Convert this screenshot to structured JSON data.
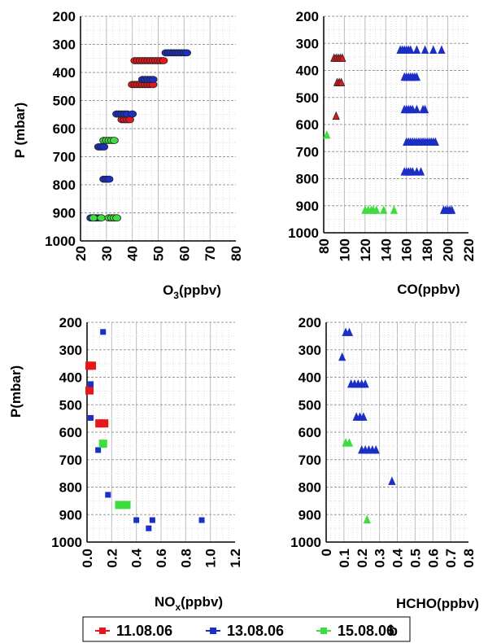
{
  "colors": {
    "s1": "#e8161b",
    "s2": "#1c2fc4",
    "s3": "#3fdc3f"
  },
  "legend": [
    {
      "label": "11.08.06",
      "color": "#e8161b"
    },
    {
      "label": "13.08.06",
      "color": "#1c2fc4"
    },
    {
      "label": "15.08.06",
      "color": "#3fdc3f"
    }
  ],
  "legend_suffix": "b",
  "chart_data": [
    {
      "type": "scatter",
      "id": "o3",
      "marker": "circle",
      "xlabel_main": "O",
      "xlabel_sub": "3",
      "xlabel_tail": "(ppbv)",
      "ylabel": "P (mbar)",
      "xlim": [
        20,
        80
      ],
      "ylim": [
        200,
        1000
      ],
      "xticks": [
        20,
        30,
        40,
        50,
        60,
        70,
        80
      ],
      "yticks": [
        200,
        300,
        400,
        500,
        600,
        700,
        800,
        900,
        1000
      ],
      "grid": true,
      "series": [
        {
          "name": "11.08.06",
          "points": [
            [
              41,
              358
            ],
            [
              42,
              358
            ],
            [
              43,
              358
            ],
            [
              44,
              358
            ],
            [
              45,
              358
            ],
            [
              46,
              358
            ],
            [
              47,
              358
            ],
            [
              48,
              358
            ],
            [
              49,
              358
            ],
            [
              50,
              358
            ],
            [
              51,
              358
            ],
            [
              52,
              358
            ],
            [
              40,
              443
            ],
            [
              41,
              443
            ],
            [
              42,
              443
            ],
            [
              43,
              443
            ],
            [
              44,
              443
            ],
            [
              45,
              443
            ],
            [
              46,
              443
            ],
            [
              47,
              443
            ],
            [
              48,
              443
            ],
            [
              36,
              568
            ],
            [
              37,
              568
            ],
            [
              38,
              568
            ],
            [
              39,
              568
            ]
          ]
        },
        {
          "name": "13.08.06",
          "points": [
            [
              53,
              330
            ],
            [
              54,
              330
            ],
            [
              55,
              330
            ],
            [
              56,
              330
            ],
            [
              57,
              330
            ],
            [
              58,
              330
            ],
            [
              59,
              330
            ],
            [
              60,
              330
            ],
            [
              61,
              330
            ],
            [
              44,
              425
            ],
            [
              45,
              425
            ],
            [
              46,
              425
            ],
            [
              47,
              425
            ],
            [
              48,
              425
            ],
            [
              34,
              548
            ],
            [
              35,
              548
            ],
            [
              36,
              548
            ],
            [
              37,
              548
            ],
            [
              38,
              548
            ],
            [
              40,
              548
            ],
            [
              27,
              665
            ],
            [
              28,
              665
            ],
            [
              29,
              665
            ],
            [
              29,
              780
            ],
            [
              30,
              780
            ],
            [
              31,
              780
            ],
            [
              24,
              918
            ],
            [
              25,
              918
            ],
            [
              26,
              918
            ],
            [
              27,
              918
            ]
          ]
        },
        {
          "name": "15.08.06",
          "points": [
            [
              29,
              642
            ],
            [
              30,
              642
            ],
            [
              31,
              642
            ],
            [
              32,
              642
            ],
            [
              33,
              642
            ],
            [
              25,
              918
            ],
            [
              28,
              918
            ],
            [
              31,
              918
            ],
            [
              32,
              918
            ],
            [
              33,
              918
            ],
            [
              34,
              918
            ]
          ]
        }
      ]
    },
    {
      "type": "scatter",
      "id": "co",
      "marker": "triangle",
      "xlabel_main": "CO(ppbv)",
      "ylabel": "",
      "xlim": [
        80,
        220
      ],
      "ylim": [
        200,
        1000
      ],
      "xticks": [
        80,
        100,
        120,
        140,
        160,
        180,
        200,
        220
      ],
      "yticks": [
        200,
        300,
        400,
        500,
        600,
        700,
        800,
        900,
        1000
      ],
      "grid": true,
      "series": [
        {
          "name": "11.08.06",
          "points": [
            [
              90,
              358
            ],
            [
              92,
              358
            ],
            [
              94,
              358
            ],
            [
              96,
              358
            ],
            [
              98,
              358
            ],
            [
              93,
              448
            ],
            [
              95,
              448
            ],
            [
              97,
              448
            ],
            [
              92,
              572
            ]
          ]
        },
        {
          "name": "13.08.06",
          "points": [
            [
              154,
              328
            ],
            [
              156,
              328
            ],
            [
              158,
              328
            ],
            [
              160,
              328
            ],
            [
              162,
              328
            ],
            [
              164,
              328
            ],
            [
              170,
              328
            ],
            [
              178,
              328
            ],
            [
              186,
              328
            ],
            [
              194,
              328
            ],
            [
              158,
              428
            ],
            [
              160,
              428
            ],
            [
              162,
              428
            ],
            [
              164,
              428
            ],
            [
              166,
              428
            ],
            [
              168,
              428
            ],
            [
              170,
              428
            ],
            [
              158,
              548
            ],
            [
              160,
              548
            ],
            [
              162,
              548
            ],
            [
              164,
              548
            ],
            [
              166,
              548
            ],
            [
              170,
              548
            ],
            [
              176,
              548
            ],
            [
              178,
              548
            ],
            [
              160,
              668
            ],
            [
              162,
              668
            ],
            [
              164,
              668
            ],
            [
              166,
              668
            ],
            [
              168,
              668
            ],
            [
              170,
              668
            ],
            [
              172,
              668
            ],
            [
              174,
              668
            ],
            [
              176,
              668
            ],
            [
              178,
              668
            ],
            [
              180,
              668
            ],
            [
              182,
              668
            ],
            [
              184,
              668
            ],
            [
              186,
              668
            ],
            [
              188,
              668
            ],
            [
              158,
              778
            ],
            [
              160,
              778
            ],
            [
              162,
              778
            ],
            [
              164,
              778
            ],
            [
              166,
              778
            ],
            [
              170,
              778
            ],
            [
              174,
              778
            ],
            [
              196,
              920
            ],
            [
              198,
              920
            ],
            [
              200,
              920
            ],
            [
              202,
              920
            ],
            [
              204,
              920
            ]
          ]
        },
        {
          "name": "15.08.06",
          "points": [
            [
              83,
              642
            ],
            [
              120,
              920
            ],
            [
              123,
              920
            ],
            [
              126,
              920
            ],
            [
              128,
              920
            ],
            [
              131,
              920
            ],
            [
              138,
              920
            ],
            [
              148,
              920
            ]
          ]
        }
      ]
    },
    {
      "type": "scatter",
      "id": "nox",
      "marker": "square",
      "xlabel_main": "NO",
      "xlabel_sub": "x",
      "xlabel_tail": "(ppbv)",
      "ylabel": "P(mbar)",
      "xlim": [
        0.0,
        1.2
      ],
      "ylim": [
        200,
        1000
      ],
      "xticks": [
        0.0,
        0.2,
        0.4,
        0.6,
        0.8,
        1.0,
        1.2
      ],
      "xtick_labels": [
        "0.0",
        "0.2",
        "0.4",
        "0.6",
        "0.8",
        "1.0",
        "1.2"
      ],
      "yticks": [
        200,
        300,
        400,
        500,
        600,
        700,
        800,
        900,
        1000
      ],
      "grid": true,
      "series": [
        {
          "name": "11.08.06",
          "points": [
            [
              0.02,
              358
            ],
            [
              0.04,
              358
            ],
            [
              0.02,
              448
            ],
            [
              0.1,
              568
            ],
            [
              0.14,
              568
            ]
          ]
        },
        {
          "name": "13.08.06",
          "points": [
            [
              0.13,
              235
            ],
            [
              0.03,
              425
            ],
            [
              0.03,
              548
            ],
            [
              0.09,
              665
            ],
            [
              0.17,
              828
            ],
            [
              0.4,
              920
            ],
            [
              0.53,
              920
            ],
            [
              0.93,
              920
            ],
            [
              0.5,
              950
            ]
          ]
        },
        {
          "name": "15.08.06",
          "points": [
            [
              0.13,
              642
            ],
            [
              0.26,
              865
            ],
            [
              0.32,
              865
            ]
          ]
        }
      ]
    },
    {
      "type": "scatter",
      "id": "hcho",
      "marker": "triangle",
      "xlabel_main": "HCHO(ppbv)",
      "ylabel": "",
      "xlim": [
        0,
        0.8
      ],
      "ylim": [
        200,
        1000
      ],
      "xticks": [
        0,
        0.1,
        0.2,
        0.3,
        0.4,
        0.5,
        0.6,
        0.7,
        0.8
      ],
      "xtick_labels": [
        "0",
        "0.1",
        "0.2",
        "0.3",
        "0.4",
        "0.5",
        "0.6",
        "0.7",
        "0.8"
      ],
      "yticks": [
        200,
        300,
        400,
        500,
        600,
        700,
        800,
        900,
        1000
      ],
      "grid": true,
      "series": [
        {
          "name": "11.08.06",
          "points": []
        },
        {
          "name": "13.08.06",
          "points": [
            [
              0.11,
              240
            ],
            [
              0.13,
              240
            ],
            [
              0.09,
              330
            ],
            [
              0.14,
              428
            ],
            [
              0.16,
              428
            ],
            [
              0.18,
              428
            ],
            [
              0.2,
              428
            ],
            [
              0.22,
              428
            ],
            [
              0.17,
              548
            ],
            [
              0.19,
              548
            ],
            [
              0.21,
              548
            ],
            [
              0.2,
              668
            ],
            [
              0.22,
              668
            ],
            [
              0.24,
              668
            ],
            [
              0.26,
              668
            ],
            [
              0.28,
              668
            ],
            [
              0.37,
              782
            ]
          ]
        },
        {
          "name": "15.08.06",
          "points": [
            [
              0.11,
              642
            ],
            [
              0.13,
              642
            ],
            [
              0.23,
              922
            ]
          ]
        }
      ]
    }
  ]
}
